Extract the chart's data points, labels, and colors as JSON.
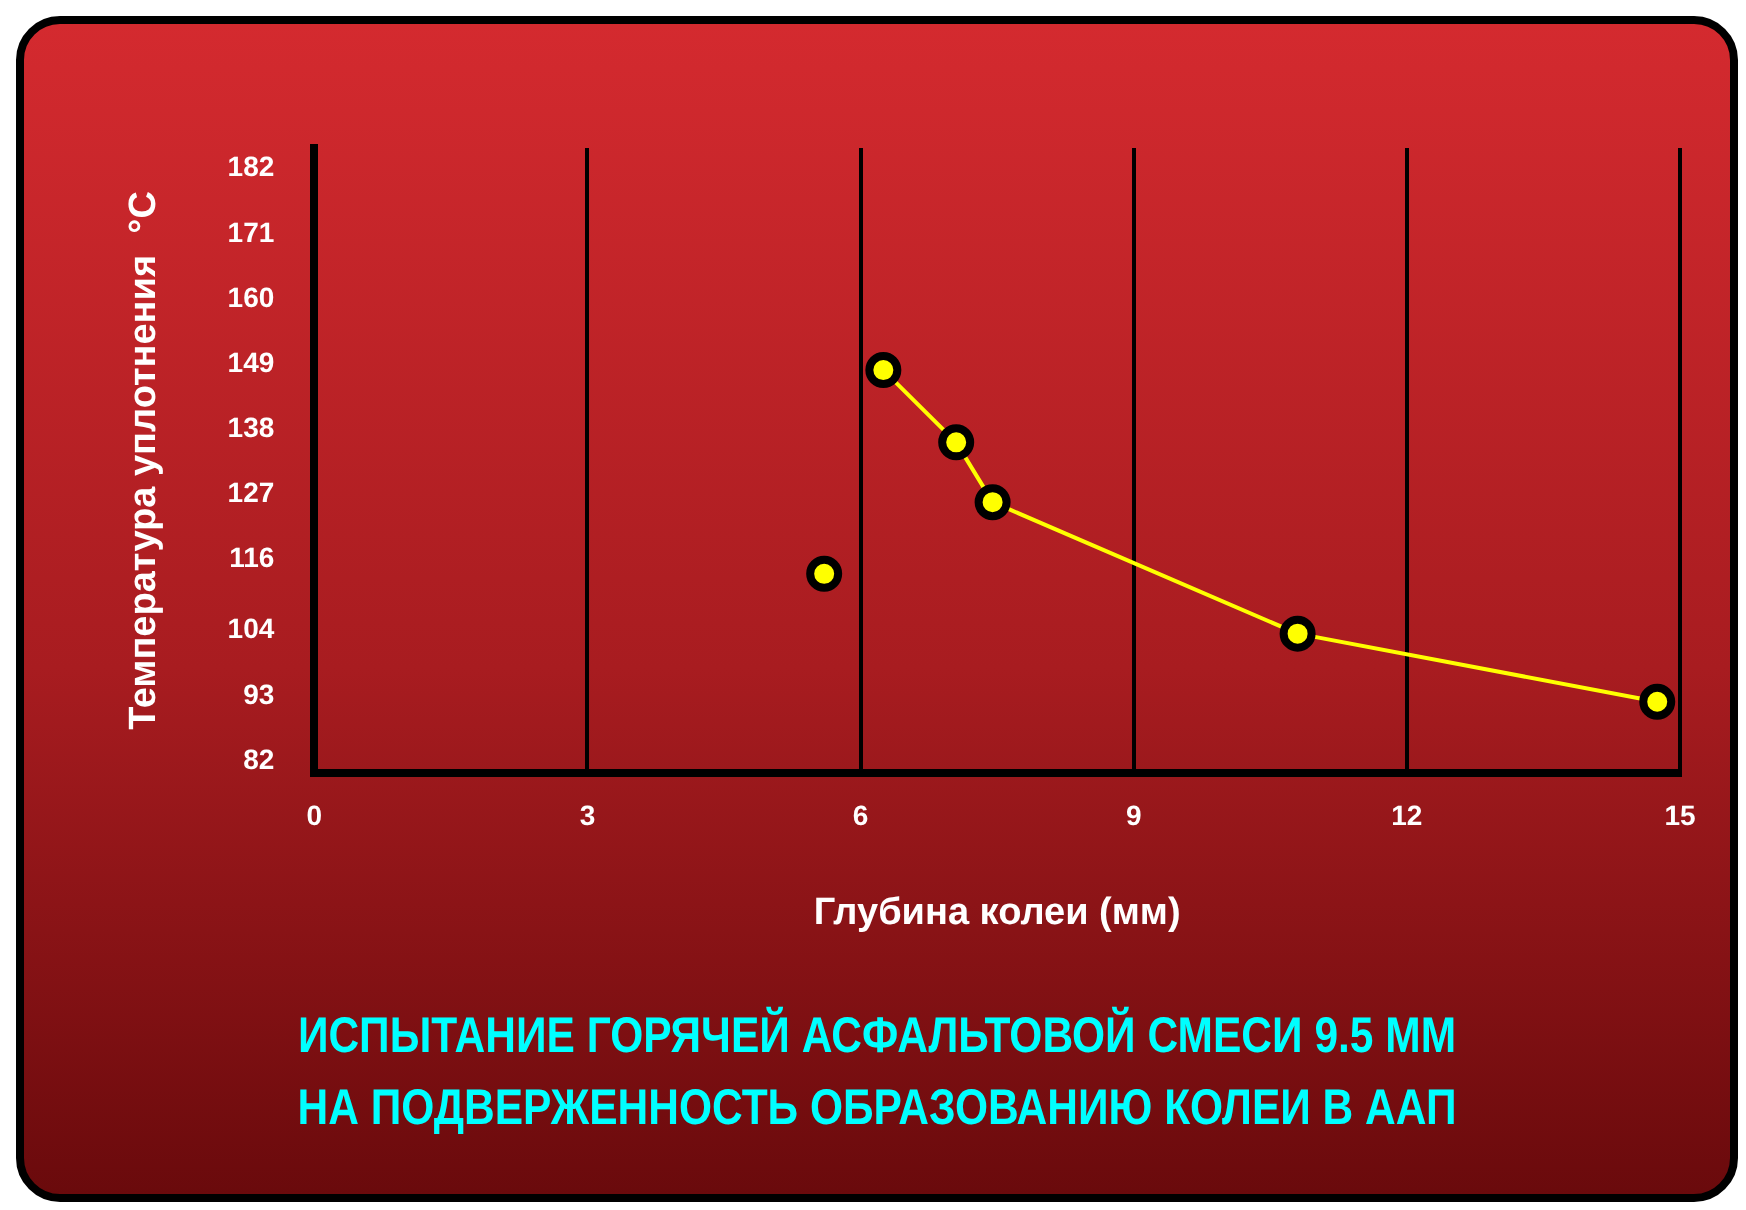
{
  "chart_data": {
    "type": "line",
    "title": "ИСПЫТАНИЕ  ГОРЯЧЕЙ АСФАЛЬТОВОЙ СМЕСИ 9.5 ММ\nНА ПОДВЕРЖЕННОСТЬ ОБРАЗОВАНИЮ КОЛЕИ В ААП",
    "xlabel": "Глубина колеи (мм)",
    "ylabel": "Температура уплотнения  °C",
    "xlim": [
      0,
      15
    ],
    "xticks": [
      0,
      3,
      6,
      9,
      12,
      15
    ],
    "ylim": [
      80,
      185.5
    ],
    "yticks": [
      82,
      93,
      104,
      116,
      127,
      138,
      149,
      160,
      171,
      182
    ],
    "grid": "x",
    "marker": "circle",
    "line_style": "solid",
    "series": [
      {
        "type": "scatter",
        "color": "#ffff00",
        "x": [
          5.6
        ],
        "values": [
          113.6
        ]
      },
      {
        "color": "#ffff00",
        "x": [
          6.25,
          7.05,
          7.45,
          10.8,
          14.75
        ],
        "values": [
          148,
          135.8,
          125.7,
          103.5,
          92
        ]
      }
    ]
  }
}
